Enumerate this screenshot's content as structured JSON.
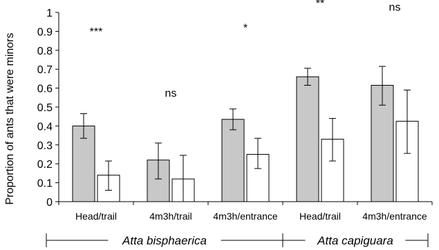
{
  "chart_data": {
    "type": "bar",
    "ylabel": "Proportion of ants that were minors",
    "xlabel": "",
    "ylim": [
      0,
      1
    ],
    "yticks": [
      0,
      0.1,
      0.2,
      0.3,
      0.4,
      0.5,
      0.6,
      0.7,
      0.8,
      0.9,
      1
    ],
    "ytick_labels": [
      "0",
      "0.1",
      "0.2",
      "0.3",
      "0.4",
      "0.5",
      "0.6",
      "0.7",
      "0.8",
      "0.9",
      "1"
    ],
    "grid": false,
    "legend": "none",
    "categories": [
      "Head/trail",
      "4m3h/trail",
      "4m3h/entrance",
      "Head/trail",
      "4m3h/entrance"
    ],
    "groups": [
      {
        "label": "Atta bisphaerica",
        "categories": [
          "Head/trail",
          "4m3h/trail",
          "4m3h/entrance"
        ]
      },
      {
        "label": "Atta capiguara",
        "categories": [
          "Head/trail",
          "4m3h/entrance"
        ]
      }
    ],
    "series": [
      {
        "values": [
          0.4,
          0.22,
          0.435,
          0.66,
          0.615
        ],
        "err_low": [
          0.335,
          0.12,
          0.38,
          0.615,
          0.51
        ],
        "err_high": [
          0.465,
          0.31,
          0.49,
          0.705,
          0.715
        ],
        "color": "#c8c8c8"
      },
      {
        "values": [
          0.14,
          0.12,
          0.25,
          0.33,
          0.425
        ],
        "err_low": [
          0.06,
          0.0,
          0.175,
          0.215,
          0.255
        ],
        "err_high": [
          0.215,
          0.245,
          0.335,
          0.44,
          0.59
        ],
        "color": "#ffffff"
      }
    ],
    "annotations": [
      "***",
      "ns",
      "*",
      "**",
      "ns"
    ],
    "annotation_y": [
      0.88,
      0.555,
      0.9,
      1.03,
      1.01
    ]
  }
}
